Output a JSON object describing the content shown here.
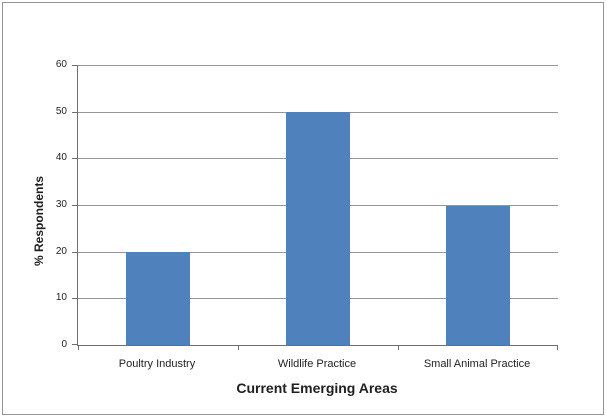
{
  "chart_data": {
    "type": "bar",
    "categories": [
      "Poultry Industry",
      "Wildlife Practice",
      "Small Animal Practice"
    ],
    "values": [
      20,
      50,
      29.7
    ],
    "title": "",
    "xlabel": "Current Emerging Areas",
    "ylabel": "% Respondents",
    "ylim": [
      0,
      60
    ],
    "yticks": [
      0,
      10,
      20,
      30,
      40,
      50,
      60
    ],
    "grid": true,
    "legend": false,
    "bar_color": "#4F81BD"
  },
  "colors": {
    "bar": "#4F81BD",
    "gridline": "#969696",
    "axis_line": "#6E6E6E",
    "text": "#1F1F1F",
    "frame_border": "#949494",
    "background": "#FFFFFF"
  }
}
